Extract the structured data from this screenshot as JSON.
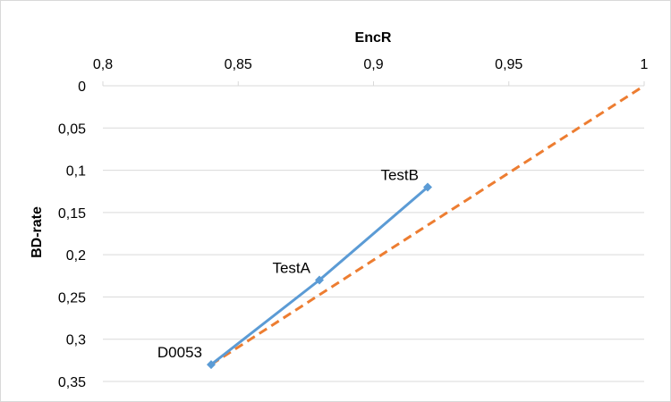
{
  "chart_data": {
    "type": "scatter",
    "xlabel": "EncR",
    "ylabel": "BD-rate",
    "xlim": [
      0.8,
      1.0
    ],
    "ylim": [
      0,
      0.35
    ],
    "y_axis_reversed": true,
    "x_axis_position": "top",
    "x_tick_labels": [
      "0,8",
      "0,85",
      "0,9",
      "0,95",
      "1"
    ],
    "x_tick_values": [
      0.8,
      0.85,
      0.9,
      0.95,
      1.0
    ],
    "y_tick_labels": [
      "0",
      "0,05",
      "0,1",
      "0,15",
      "0,2",
      "0,25",
      "0,3",
      "0,35"
    ],
    "y_tick_values": [
      0,
      0.05,
      0.1,
      0.15,
      0.2,
      0.25,
      0.3,
      0.35
    ],
    "grid": "horizontal",
    "series": [
      {
        "style": "solid-line-diamond-markers",
        "color": "#5b9bd5",
        "points": [
          {
            "x": 0.84,
            "y": 0.33,
            "label": "D0053"
          },
          {
            "x": 0.88,
            "y": 0.23,
            "label": "TestA"
          },
          {
            "x": 0.92,
            "y": 0.12,
            "label": "TestB"
          }
        ]
      },
      {
        "style": "dashed-line",
        "color": "#ed7d31",
        "points": [
          {
            "x": 0.84,
            "y": 0.33
          },
          {
            "x": 1.0,
            "y": 0.0
          }
        ]
      }
    ]
  }
}
